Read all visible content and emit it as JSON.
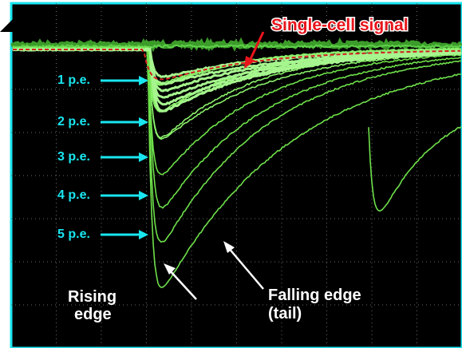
{
  "signal_label": "Single-cell signal",
  "pe_labels": [
    "1 p.e.",
    "2 p.e.",
    "3 p.e.",
    "4 p.e.",
    "5 p.e."
  ],
  "rising_label": [
    "Rising",
    "edge"
  ],
  "falling_label": [
    "Falling  edge",
    "(tail)"
  ]
}
